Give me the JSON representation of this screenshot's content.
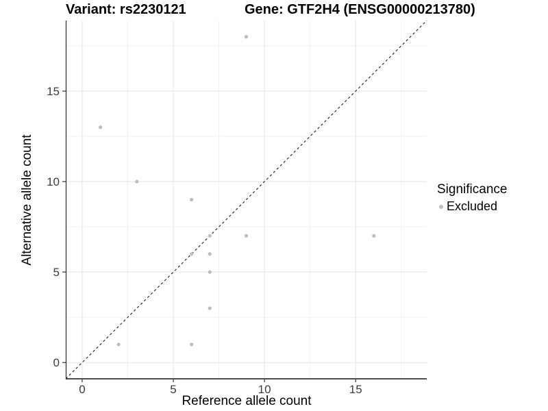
{
  "title": {
    "variant": "Variant: rs2230121",
    "gene": "Gene: GTF2H4 (ENSG00000213780)"
  },
  "chart_data": {
    "type": "scatter",
    "title": "Variant: rs2230121   Gene: GTF2H4 (ENSG00000213780)",
    "xlabel": "Reference allele count",
    "ylabel": "Alternative allele count",
    "xlim": [
      -0.9,
      18.9
    ],
    "ylim": [
      -0.9,
      18.9
    ],
    "x_ticks": [
      0,
      5,
      10,
      15
    ],
    "y_ticks": [
      0,
      5,
      10,
      15
    ],
    "x_minor_ticks": [
      2.5,
      7.5,
      12.5,
      17.5
    ],
    "y_minor_ticks": [
      2.5,
      7.5,
      12.5,
      17.5
    ],
    "grid": true,
    "identity_line": {
      "style": "dashed",
      "slope": 1,
      "intercept": 0
    },
    "series": [
      {
        "name": "Excluded",
        "color": "#bdbdbd",
        "points": [
          [
            1,
            13
          ],
          [
            2,
            1
          ],
          [
            3,
            10
          ],
          [
            6,
            1
          ],
          [
            6,
            6
          ],
          [
            6,
            9
          ],
          [
            7,
            3
          ],
          [
            7,
            5
          ],
          [
            7,
            6
          ],
          [
            7,
            7
          ],
          [
            9,
            7
          ],
          [
            9,
            18
          ],
          [
            16,
            7
          ]
        ]
      }
    ],
    "legend": {
      "title": "Significance",
      "position": "right",
      "items": [
        {
          "label": "Excluded",
          "color": "#bdbdbd"
        }
      ]
    }
  },
  "colors": {
    "point": "#bdbdbd",
    "grid_major": "#e3e3e3",
    "grid_minor": "#f1f1f1",
    "axis_line": "#333333",
    "tick_mark": "#333333",
    "tick_label": "#3d3d3d",
    "dashed_line": "#1a1a1a",
    "background": "#ffffff"
  }
}
